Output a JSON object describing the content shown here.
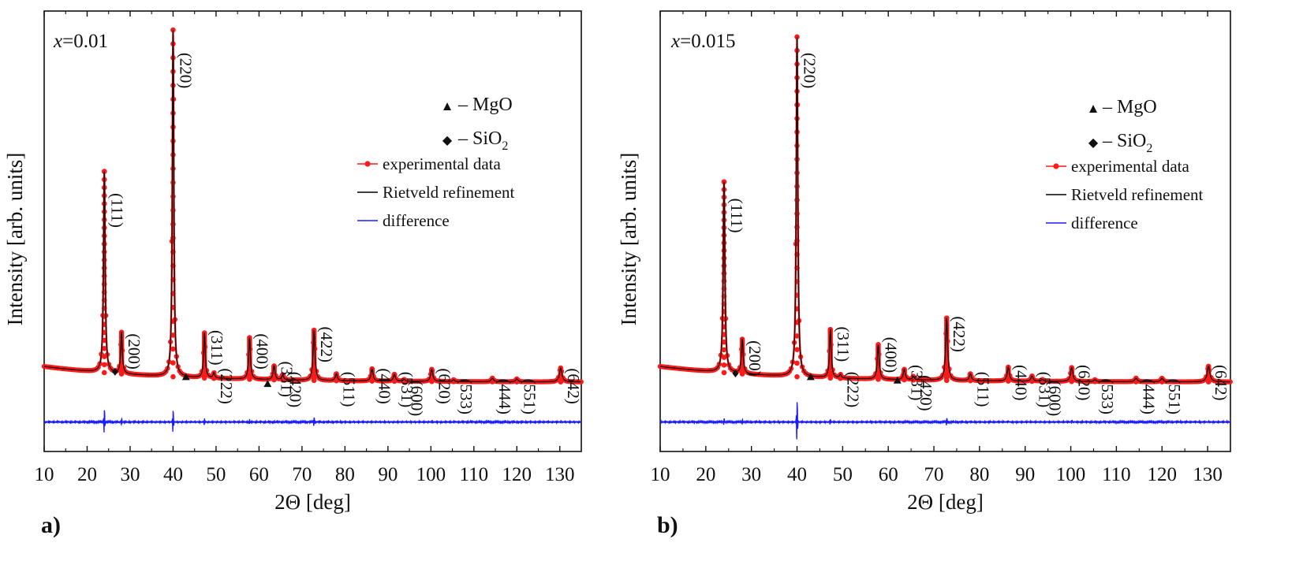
{
  "chart_data": [
    {
      "type": "line",
      "panel_label": "a)",
      "composition_prefix": "x",
      "composition_value": "=0.01",
      "xlabel": "2Θ [deg]",
      "ylabel": "Intensity [arb. units]",
      "xlim": [
        10,
        135
      ],
      "ylim": [
        -0.17,
        1.1
      ],
      "xticks": [
        10,
        20,
        30,
        40,
        50,
        60,
        70,
        80,
        90,
        100,
        110,
        120,
        130
      ],
      "background": 0.03,
      "peaks": [
        {
          "x": 24.0,
          "h": 0.58,
          "w": 0.22,
          "hkl": "(111)",
          "label_y": 0.575
        },
        {
          "x": 28.0,
          "h": 0.12,
          "w": 0.22,
          "hkl": "(200)",
          "label_y": 0.17
        },
        {
          "x": 40.0,
          "h": 1.0,
          "w": 0.2,
          "hkl": "(220)",
          "label_y": 0.98
        },
        {
          "x": 47.3,
          "h": 0.13,
          "w": 0.22,
          "hkl": "(311)",
          "label_y": 0.18
        },
        {
          "x": 49.5,
          "h": 0.015,
          "w": 0.22,
          "hkl": "(222)",
          "label_y": 0.07
        },
        {
          "x": 57.8,
          "h": 0.12,
          "w": 0.24,
          "hkl": "(400)",
          "label_y": 0.17
        },
        {
          "x": 63.5,
          "h": 0.04,
          "w": 0.25,
          "hkl": "(331)",
          "label_y": 0.09
        },
        {
          "x": 65.5,
          "h": 0.015,
          "w": 0.25,
          "hkl": "(420)",
          "label_y": 0.06
        },
        {
          "x": 72.8,
          "h": 0.145,
          "w": 0.26,
          "hkl": "(422)",
          "label_y": 0.19
        },
        {
          "x": 78.0,
          "h": 0.02,
          "w": 0.26,
          "hkl": "(511)",
          "label_y": 0.06
        },
        {
          "x": 86.3,
          "h": 0.035,
          "w": 0.28,
          "hkl": "(440)",
          "label_y": 0.07
        },
        {
          "x": 91.5,
          "h": 0.02,
          "w": 0.28,
          "hkl": "(531)",
          "label_y": 0.06
        },
        {
          "x": 93.8,
          "h": 0.005,
          "w": 0.28,
          "hkl": "(600)",
          "label_y": 0.035
        },
        {
          "x": 100.2,
          "h": 0.035,
          "w": 0.3,
          "hkl": "(620)",
          "label_y": 0.07
        },
        {
          "x": 105.3,
          "h": 0.005,
          "w": 0.3,
          "hkl": "(533)",
          "label_y": 0.04
        },
        {
          "x": 114.3,
          "h": 0.01,
          "w": 0.32,
          "hkl": "(444)",
          "label_y": 0.04
        },
        {
          "x": 120.0,
          "h": 0.008,
          "w": 0.32,
          "hkl": "(551)",
          "label_y": 0.04
        },
        {
          "x": 130.2,
          "h": 0.04,
          "w": 0.35,
          "hkl": "(642)",
          "label_y": 0.07
        }
      ],
      "markers": [
        {
          "symbol": "diamond",
          "x": 26.5,
          "y": 0.06
        },
        {
          "symbol": "triangle",
          "x": 43.0,
          "y": 0.045
        },
        {
          "symbol": "triangle",
          "x": 62.0,
          "y": 0.025
        }
      ],
      "difference_offset": -0.085,
      "difference_spikes": [
        {
          "x": 24.0,
          "a": 0.035
        },
        {
          "x": 28.0,
          "a": 0.008
        },
        {
          "x": 40.0,
          "a": 0.03
        },
        {
          "x": 47.3,
          "a": 0.008
        },
        {
          "x": 57.8,
          "a": 0.006
        },
        {
          "x": 72.8,
          "a": 0.012
        },
        {
          "x": 100.2,
          "a": 0.004
        },
        {
          "x": 130.2,
          "a": 0.004
        }
      ],
      "legend": {
        "mgo_symbol": "▲",
        "mgo_text": "– MgO",
        "sio2_symbol": "◆",
        "sio2_text": "– SiO",
        "sio2_sub": "2",
        "series": [
          {
            "name": "experimental data",
            "color": "#ff1a1a"
          },
          {
            "name": "Rietveld refinement",
            "color": "#000000"
          },
          {
            "name": "difference",
            "color": "#1a1aff"
          }
        ]
      }
    },
    {
      "type": "line",
      "panel_label": "b)",
      "composition_prefix": "x",
      "composition_value": "=0.015",
      "xlabel": "2Θ [deg]",
      "ylabel": "Intensity [arb. units]",
      "xlim": [
        10,
        135
      ],
      "ylim": [
        -0.17,
        1.1
      ],
      "xticks": [
        10,
        20,
        30,
        40,
        50,
        60,
        70,
        80,
        90,
        100,
        110,
        120,
        130
      ],
      "background": 0.03,
      "peaks": [
        {
          "x": 24.0,
          "h": 0.55,
          "w": 0.22,
          "hkl": "(111)",
          "label_y": 0.56
        },
        {
          "x": 28.0,
          "h": 0.1,
          "w": 0.22,
          "hkl": "(200)",
          "label_y": 0.15
        },
        {
          "x": 40.0,
          "h": 0.98,
          "w": 0.2,
          "hkl": "(220)",
          "label_y": 0.98
        },
        {
          "x": 47.3,
          "h": 0.14,
          "w": 0.22,
          "hkl": "(311)",
          "label_y": 0.19
        },
        {
          "x": 49.5,
          "h": 0.01,
          "w": 0.22,
          "hkl": "(222)",
          "label_y": 0.06
        },
        {
          "x": 57.8,
          "h": 0.1,
          "w": 0.24,
          "hkl": "(400)",
          "label_y": 0.16
        },
        {
          "x": 63.5,
          "h": 0.03,
          "w": 0.25,
          "hkl": "(331)",
          "label_y": 0.08
        },
        {
          "x": 65.5,
          "h": 0.01,
          "w": 0.25,
          "hkl": "(420)",
          "label_y": 0.05
        },
        {
          "x": 72.8,
          "h": 0.18,
          "w": 0.26,
          "hkl": "(422)",
          "label_y": 0.22
        },
        {
          "x": 78.0,
          "h": 0.02,
          "w": 0.26,
          "hkl": "(511)",
          "label_y": 0.06
        },
        {
          "x": 86.3,
          "h": 0.04,
          "w": 0.28,
          "hkl": "(440)",
          "label_y": 0.08
        },
        {
          "x": 91.5,
          "h": 0.015,
          "w": 0.28,
          "hkl": "(531)",
          "label_y": 0.06
        },
        {
          "x": 93.8,
          "h": 0.005,
          "w": 0.28,
          "hkl": "(600)",
          "label_y": 0.035
        },
        {
          "x": 100.2,
          "h": 0.04,
          "w": 0.3,
          "hkl": "(620)",
          "label_y": 0.08
        },
        {
          "x": 105.3,
          "h": 0.005,
          "w": 0.3,
          "hkl": "(533)",
          "label_y": 0.04
        },
        {
          "x": 114.3,
          "h": 0.01,
          "w": 0.32,
          "hkl": "(444)",
          "label_y": 0.04
        },
        {
          "x": 120.0,
          "h": 0.01,
          "w": 0.32,
          "hkl": "(551)",
          "label_y": 0.04
        },
        {
          "x": 130.2,
          "h": 0.045,
          "w": 0.35,
          "hkl": "(642)",
          "label_y": 0.08
        }
      ],
      "markers": [
        {
          "symbol": "diamond",
          "x": 26.5,
          "y": 0.055
        },
        {
          "symbol": "triangle",
          "x": 43.0,
          "y": 0.045
        },
        {
          "symbol": "triangle",
          "x": 62.0,
          "y": 0.035
        }
      ],
      "difference_offset": -0.085,
      "difference_spikes": [
        {
          "x": 24.0,
          "a": 0.01
        },
        {
          "x": 28.0,
          "a": 0.006
        },
        {
          "x": 40.0,
          "a": 0.055
        },
        {
          "x": 47.3,
          "a": 0.006
        },
        {
          "x": 72.8,
          "a": 0.01
        },
        {
          "x": 86.3,
          "a": 0.003
        },
        {
          "x": 100.2,
          "a": 0.005
        },
        {
          "x": 130.2,
          "a": 0.004
        }
      ],
      "legend": {
        "mgo_symbol": "▲",
        "mgo_text": "– MgO",
        "sio2_symbol": "◆",
        "sio2_text": "– SiO",
        "sio2_sub": "2",
        "series": [
          {
            "name": "experimental data",
            "color": "#ff1a1a"
          },
          {
            "name": "Rietveld refinement",
            "color": "#000000"
          },
          {
            "name": "difference",
            "color": "#1a1aff"
          }
        ]
      }
    }
  ]
}
